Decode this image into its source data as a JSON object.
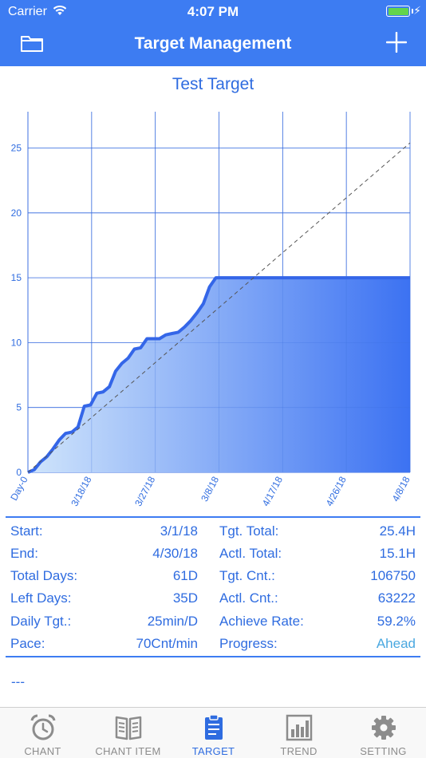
{
  "status_bar": {
    "carrier": "Carrier",
    "time": "4:07 PM"
  },
  "nav": {
    "title": "Target Management",
    "left_icon": "folder-icon",
    "right_icon": "plus-icon"
  },
  "chart_data": {
    "type": "area",
    "title": "Test Target",
    "x_tick_labels": [
      "Day-0",
      "3/18/18",
      "3/27/18",
      "3/8/18",
      "4/17/18",
      "4/26/18",
      "4/8/18"
    ],
    "y_ticks": [
      0,
      5,
      10,
      15,
      20,
      25
    ],
    "ylim": [
      0,
      27.8
    ],
    "xlim": [
      0,
      61
    ],
    "grid": true,
    "series": [
      {
        "kind": "actual",
        "x": [
          0,
          1,
          2,
          3,
          4,
          5,
          6,
          7,
          8,
          9,
          10,
          11,
          12,
          13,
          14,
          15,
          16,
          17,
          18,
          19,
          20,
          21,
          22,
          23,
          24,
          25,
          26,
          27,
          28,
          29,
          30,
          31,
          61
        ],
        "y": [
          0,
          0.2,
          0.8,
          1.2,
          1.8,
          2.5,
          3.0,
          3.1,
          3.5,
          5.1,
          5.2,
          6.1,
          6.2,
          6.6,
          7.8,
          8.4,
          8.8,
          9.5,
          9.6,
          10.3,
          10.3,
          10.3,
          10.6,
          10.7,
          10.8,
          11.2,
          11.7,
          12.3,
          13.0,
          14.3,
          15.0,
          15.0,
          15.0
        ]
      },
      {
        "kind": "target",
        "x": [
          0,
          61
        ],
        "y": [
          0,
          25.4
        ]
      }
    ],
    "colors": {
      "line": "#3466e8",
      "fill_start": "#d0e5fb",
      "fill_end": "#3c72f2",
      "grid": "#3d6fe0",
      "target": "#555555"
    }
  },
  "stats": {
    "start_label": "Start:",
    "start_value": "3/1/18",
    "end_label": "End:",
    "end_value": "4/30/18",
    "total_days_label": "Total Days:",
    "total_days_value": "61D",
    "left_days_label": "Left Days:",
    "left_days_value": "35D",
    "daily_tgt_label": "Daily Tgt.:",
    "daily_tgt_value": "25min/D",
    "pace_label": "Pace:",
    "pace_value": "70Cnt/min",
    "tgt_total_label": "Tgt. Total:",
    "tgt_total_value": "25.4H",
    "actl_total_label": "Actl. Total:",
    "actl_total_value": "15.1H",
    "tgt_cnt_label": "Tgt. Cnt.:",
    "tgt_cnt_value": "106750",
    "actl_cnt_label": "Actl. Cnt.:",
    "actl_cnt_value": "63222",
    "achieve_rate_label": "Achieve Rate:",
    "achieve_rate_value": "59.2%",
    "progress_label": "Progress:",
    "progress_value": "Ahead"
  },
  "notes": "---",
  "tabs": [
    {
      "label": "CHANT",
      "icon": "alarm-clock-icon",
      "active": false
    },
    {
      "label": "CHANT ITEM",
      "icon": "book-icon",
      "active": false
    },
    {
      "label": "TARGET",
      "icon": "clipboard-icon",
      "active": true
    },
    {
      "label": "TREND",
      "icon": "bar-chart-icon",
      "active": false
    },
    {
      "label": "SETTING",
      "icon": "gear-icon",
      "active": false
    }
  ]
}
